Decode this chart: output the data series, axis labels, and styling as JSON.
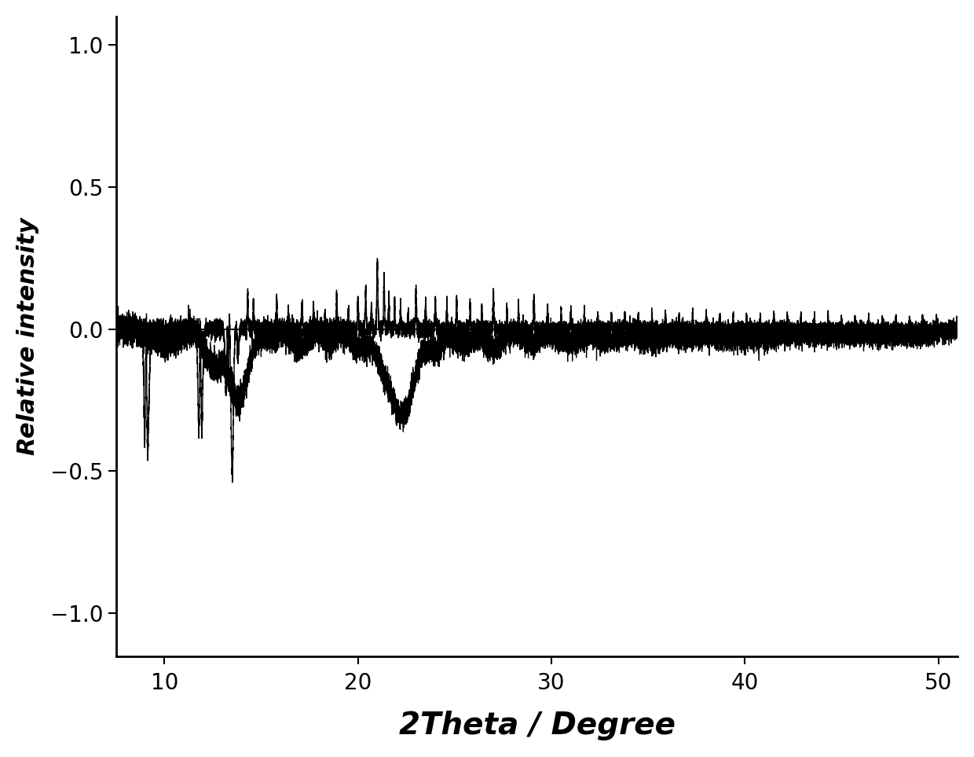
{
  "xlabel": "2Theta / Degree",
  "ylabel": "Relative intensity",
  "xlim": [
    7.5,
    51
  ],
  "ylim": [
    -1.15,
    1.1
  ],
  "xticks": [
    10,
    20,
    30,
    40,
    50
  ],
  "yticks": [
    -1.0,
    -0.5,
    0.0,
    0.5,
    1.0
  ],
  "line_color": "#000000",
  "background_color": "#ffffff",
  "linewidth": 1.0,
  "xlabel_fontsize": 28,
  "ylabel_fontsize": 22,
  "tick_fontsize": 20
}
